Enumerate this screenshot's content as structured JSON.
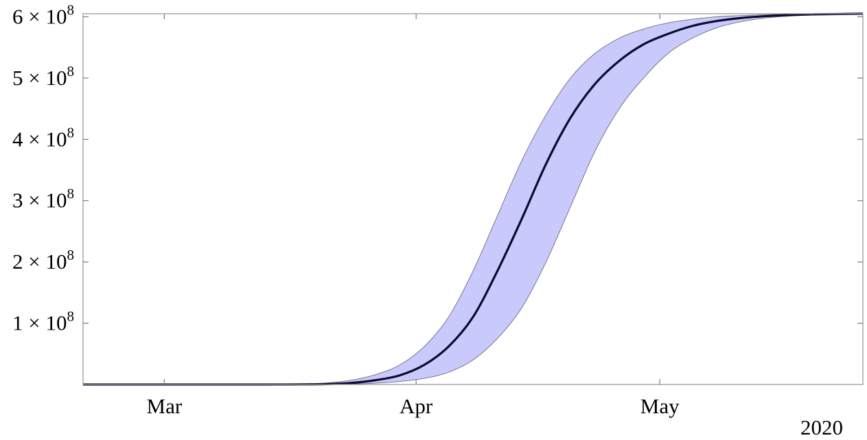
{
  "chart_data": {
    "type": "area",
    "x": [
      "2020-02-20",
      "2020-02-23",
      "2020-02-26",
      "2020-02-29",
      "2020-03-03",
      "2020-03-06",
      "2020-03-09",
      "2020-03-12",
      "2020-03-15",
      "2020-03-18",
      "2020-03-21",
      "2020-03-24",
      "2020-03-27",
      "2020-03-30",
      "2020-04-02",
      "2020-04-05",
      "2020-04-08",
      "2020-04-11",
      "2020-04-14",
      "2020-04-17",
      "2020-04-20",
      "2020-04-23",
      "2020-04-26",
      "2020-04-29",
      "2020-05-02",
      "2020-05-05",
      "2020-05-08",
      "2020-05-11",
      "2020-05-14",
      "2020-05-17",
      "2020-05-20",
      "2020-05-23",
      "2020-05-26"
    ],
    "series": [
      {
        "role": "mean",
        "values": [
          0,
          0,
          0,
          0,
          0,
          0,
          0,
          0,
          50000,
          200000,
          700000,
          2500000,
          7000000,
          15000000,
          32000000,
          62000000,
          110000000,
          185000000,
          270000000,
          360000000,
          435000000,
          490000000,
          528000000,
          555000000,
          572000000,
          585000000,
          593000000,
          598000000,
          601000000,
          603000000,
          604000000,
          604500000,
          605000000
        ]
      },
      {
        "role": "upper",
        "values": [
          0,
          0,
          0,
          0,
          0,
          0,
          0,
          0,
          150000,
          700000,
          2500000,
          7000000,
          16000000,
          32000000,
          62000000,
          110000000,
          185000000,
          275000000,
          365000000,
          440000000,
          500000000,
          540000000,
          565000000,
          580000000,
          590000000,
          596000000,
          600000000,
          602000000,
          603500000,
          604500000,
          605000000,
          605000000,
          605000000
        ]
      },
      {
        "role": "lower",
        "values": [
          0,
          0,
          0,
          0,
          0,
          0,
          0,
          0,
          20000,
          80000,
          250000,
          800000,
          2000000,
          5000000,
          10000000,
          20000000,
          40000000,
          75000000,
          125000000,
          200000000,
          290000000,
          380000000,
          450000000,
          500000000,
          540000000,
          565000000,
          582000000,
          592000000,
          598000000,
          601000000,
          603000000,
          604000000,
          605000000
        ]
      }
    ],
    "x_ticks": [
      "Mar",
      "Apr",
      "May"
    ],
    "x_tick_dates": [
      "2020-03-01",
      "2020-04-01",
      "2020-05-01"
    ],
    "x_axis_year": "2020",
    "y_ticks": [
      {
        "value": 100000000,
        "mantissa": "1 × 10",
        "exponent": "8"
      },
      {
        "value": 200000000,
        "mantissa": "2 × 10",
        "exponent": "8"
      },
      {
        "value": 300000000,
        "mantissa": "3 × 10",
        "exponent": "8"
      },
      {
        "value": 400000000,
        "mantissa": "4 × 10",
        "exponent": "8"
      },
      {
        "value": 500000000,
        "mantissa": "5 × 10",
        "exponent": "8"
      },
      {
        "value": 600000000,
        "mantissa": "6 × 10",
        "exponent": "8"
      }
    ],
    "xlim": [
      "2020-02-20",
      "2020-05-26"
    ],
    "ylim": [
      0,
      605000000
    ],
    "grid": false,
    "legend": "none",
    "colors": {
      "band": "#c9c9fb",
      "band_edge": "#6a6a86",
      "line": "#0b0b2e",
      "frame": "#9a9a9a"
    },
    "title": "",
    "xlabel": "",
    "ylabel": ""
  }
}
